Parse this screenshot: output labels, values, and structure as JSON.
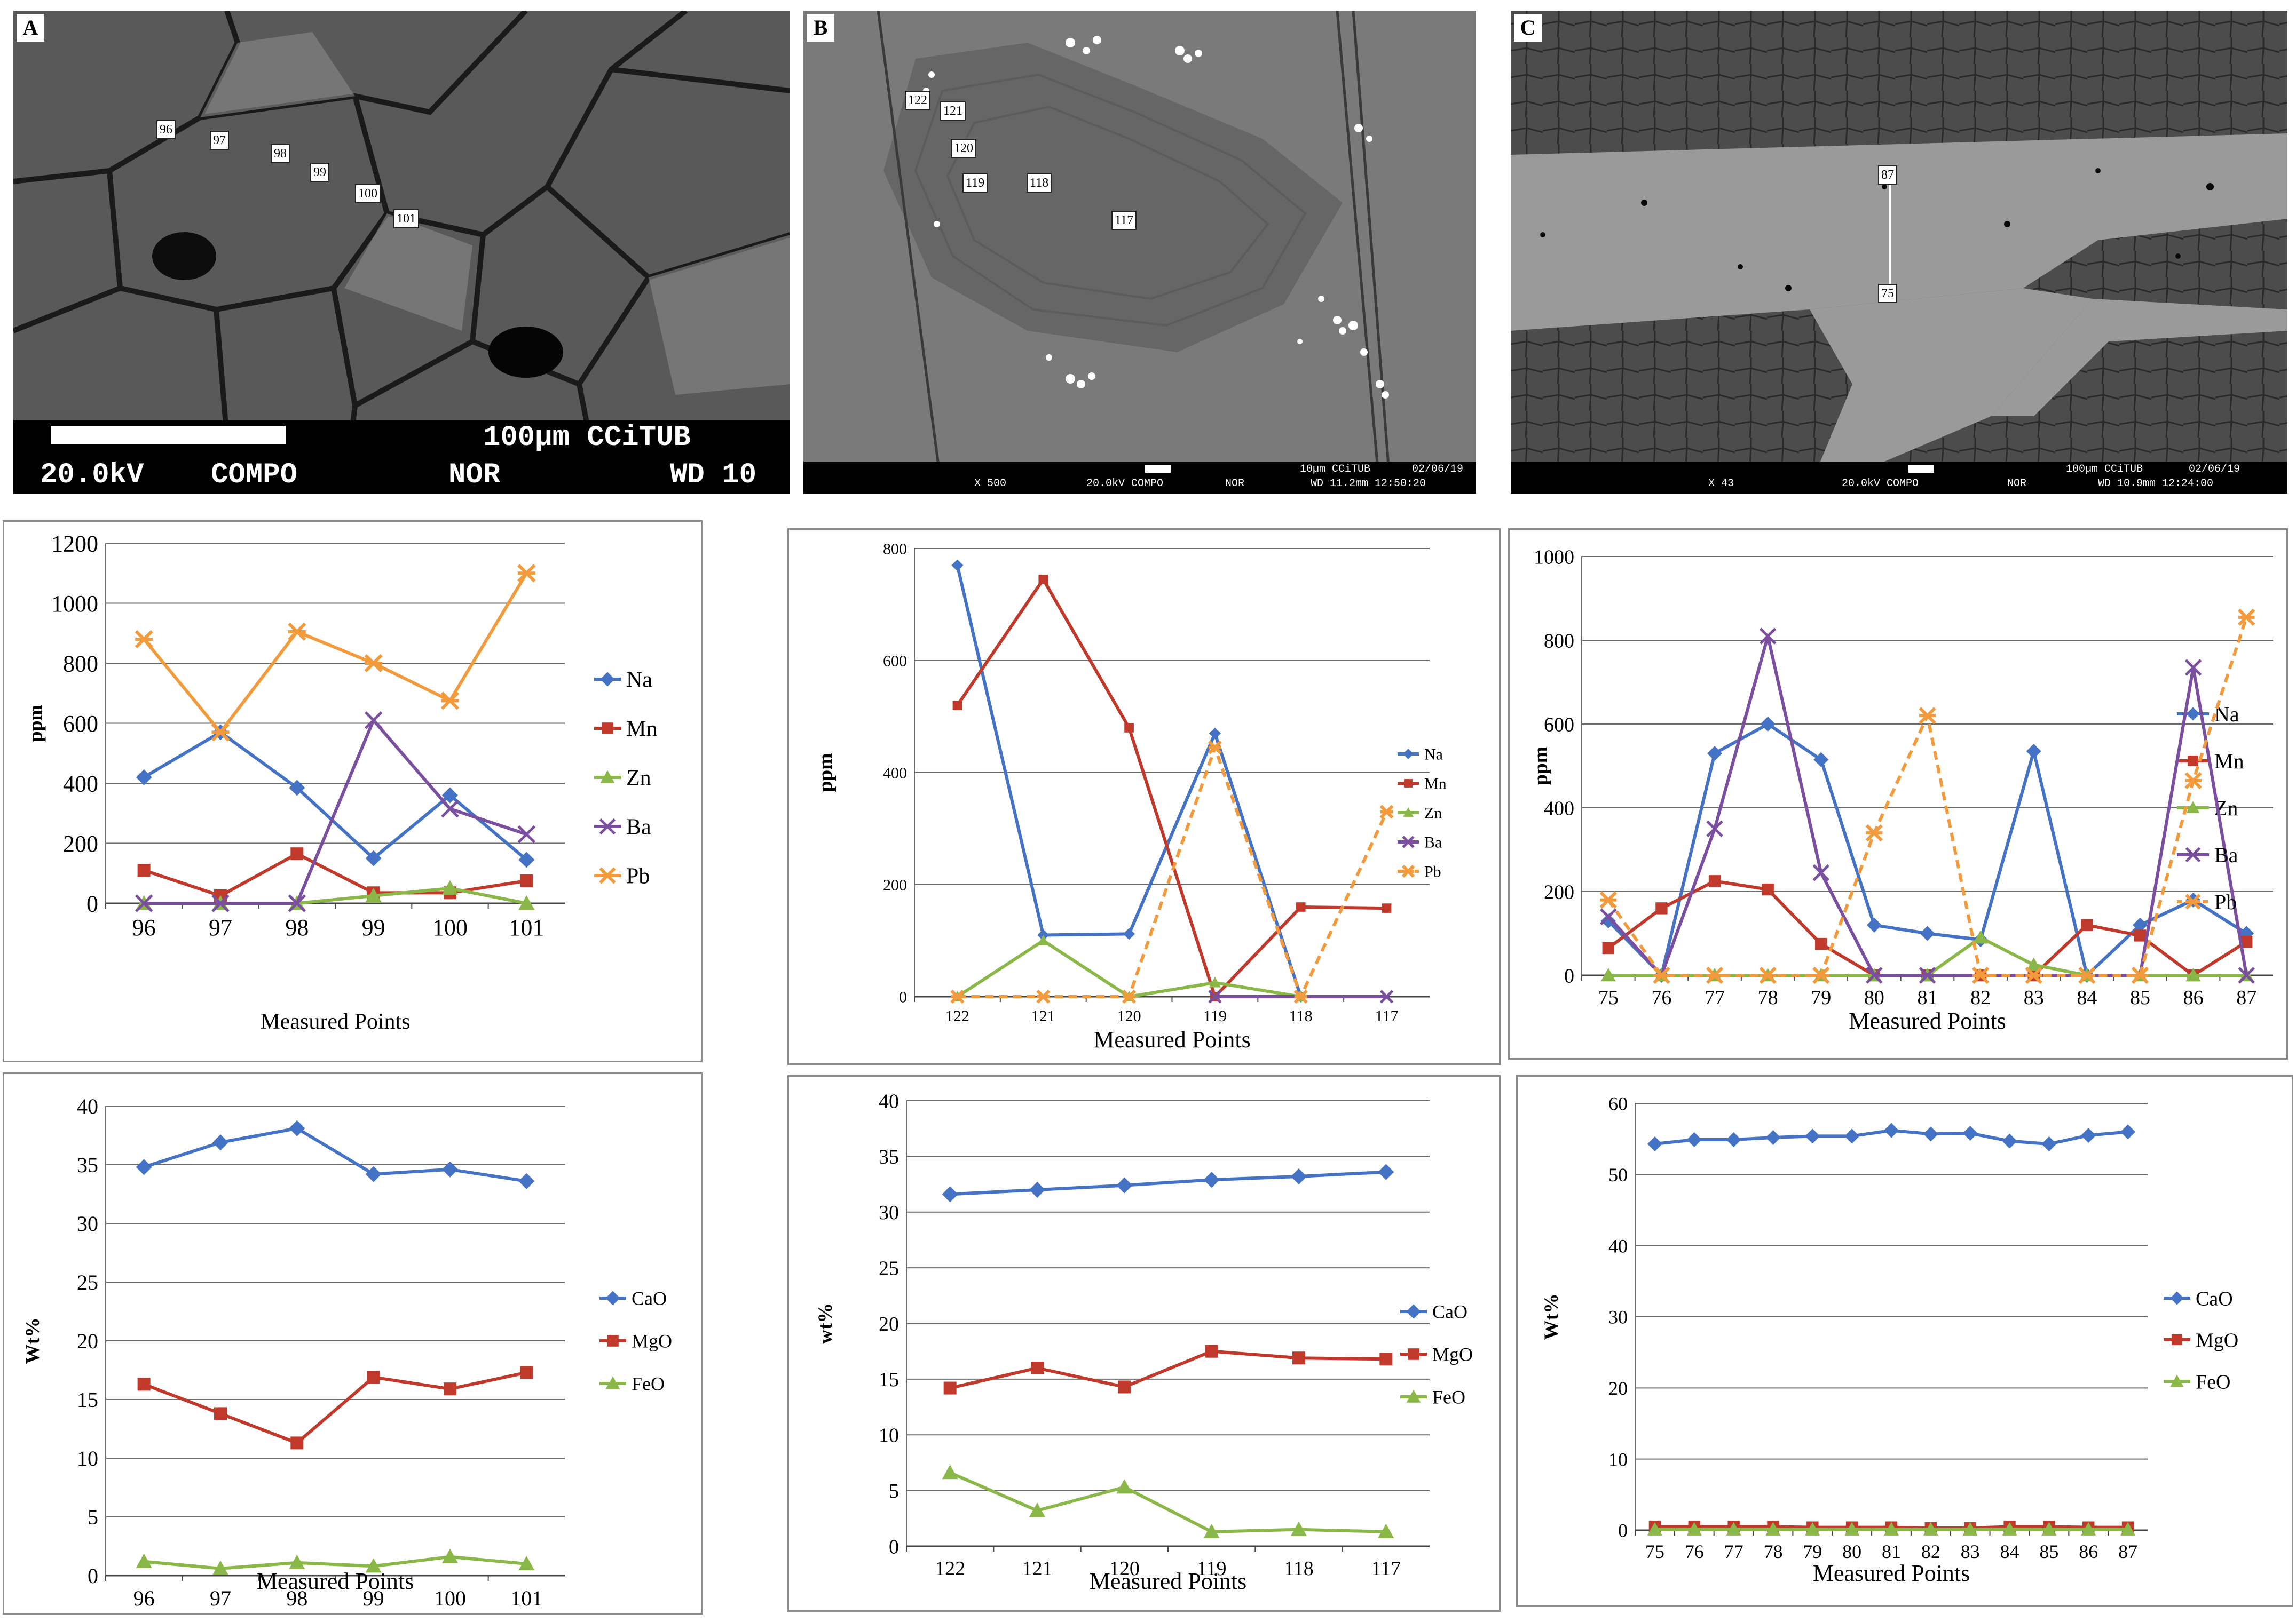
{
  "figure": {
    "panels": {
      "A": {
        "label": "A",
        "point_labels": [
          "96",
          "97",
          "98",
          "99",
          "100",
          "101"
        ],
        "scale_text": "100µm CCiTUB",
        "info": {
          "kv": "20.0kV",
          "mode": "COMPO",
          "det": "NOR",
          "wd": "WD 10"
        }
      },
      "B": {
        "label": "B",
        "point_labels": [
          "122",
          "121",
          "120",
          "119",
          "118",
          "117"
        ],
        "info": {
          "mag": "X 500",
          "kv": "20.0kV COMPO",
          "det": "NOR",
          "scale": "10µm CCiTUB",
          "date": "02/06/19",
          "wd": "WD 11.2mm 12:50:20"
        }
      },
      "C": {
        "label": "C",
        "point_labels": [
          "87",
          "75"
        ],
        "info": {
          "mag": "X 43",
          "kv": "20.0kV COMPO",
          "det": "NOR",
          "scale": "100µm CCiTUB",
          "date": "02/06/19",
          "wd": "WD 10.9mm 12:24:00"
        }
      }
    }
  },
  "colors": {
    "Na": "#4472c4",
    "Mn": "#c0392b",
    "Zn": "#8ab848",
    "Ba": "#7b4fa0",
    "Pb": "#f39a3c",
    "CaO": "#4472c4",
    "MgO": "#c0392b",
    "FeO": "#8ab848"
  },
  "chart_data": [
    {
      "id": "A-trace",
      "type": "line",
      "title": "",
      "xlabel": "Measured Points",
      "ylabel": "ppm",
      "categories": [
        "96",
        "97",
        "98",
        "99",
        "100",
        "101"
      ],
      "ylim": [
        0,
        1200
      ],
      "yticks": [
        0,
        200,
        400,
        600,
        800,
        1000,
        1200
      ],
      "series": [
        {
          "name": "Na",
          "marker": "diamond",
          "values": [
            420,
            570,
            385,
            150,
            360,
            145
          ]
        },
        {
          "name": "Mn",
          "marker": "square",
          "values": [
            110,
            25,
            165,
            35,
            35,
            75
          ]
        },
        {
          "name": "Zn",
          "marker": "triangle",
          "values": [
            0,
            0,
            0,
            25,
            50,
            0
          ]
        },
        {
          "name": "Ba",
          "marker": "x",
          "values": [
            0,
            0,
            0,
            610,
            315,
            230
          ]
        },
        {
          "name": "Pb",
          "marker": "star",
          "values": [
            880,
            570,
            905,
            800,
            675,
            1100
          ]
        }
      ]
    },
    {
      "id": "B-trace",
      "type": "line",
      "title": "",
      "xlabel": "Measured Points",
      "ylabel": "ppm",
      "categories": [
        "122",
        "121",
        "120",
        "119",
        "118",
        "117"
      ],
      "ylim": [
        0,
        800
      ],
      "yticks": [
        0,
        200,
        400,
        600,
        800
      ],
      "series": [
        {
          "name": "Na",
          "marker": "diamond",
          "values": [
            770,
            110,
            112,
            470,
            0,
            null
          ]
        },
        {
          "name": "Mn",
          "marker": "square",
          "values": [
            520,
            745,
            480,
            0,
            160,
            158
          ]
        },
        {
          "name": "Zn",
          "marker": "triangle",
          "values": [
            0,
            100,
            0,
            25,
            0,
            null
          ]
        },
        {
          "name": "Ba",
          "marker": "x",
          "values": [
            null,
            null,
            null,
            0,
            0,
            0
          ]
        },
        {
          "name": "Pb",
          "marker": "star",
          "values": [
            0,
            0,
            0,
            445,
            0,
            330
          ]
        }
      ]
    },
    {
      "id": "C-trace",
      "type": "line",
      "title": "",
      "xlabel": "Measured Points",
      "ylabel": "ppm",
      "categories": [
        "75",
        "76",
        "77",
        "78",
        "79",
        "80",
        "81",
        "82",
        "83",
        "84",
        "85",
        "86",
        "87"
      ],
      "ylim": [
        0,
        1000
      ],
      "yticks": [
        0,
        200,
        400,
        600,
        800,
        1000
      ],
      "series": [
        {
          "name": "Na",
          "marker": "diamond",
          "values": [
            130,
            0,
            530,
            600,
            515,
            120,
            100,
            85,
            535,
            0,
            120,
            180,
            100
          ]
        },
        {
          "name": "Mn",
          "marker": "square",
          "values": [
            65,
            160,
            225,
            205,
            75,
            0,
            0,
            0,
            0,
            120,
            95,
            0,
            80
          ]
        },
        {
          "name": "Zn",
          "marker": "triangle",
          "values": [
            0,
            0,
            0,
            0,
            0,
            0,
            0,
            90,
            25,
            0,
            0,
            0,
            0
          ]
        },
        {
          "name": "Ba",
          "marker": "x",
          "values": [
            140,
            0,
            350,
            810,
            245,
            0,
            0,
            0,
            0,
            0,
            0,
            735,
            0
          ]
        },
        {
          "name": "Pb",
          "marker": "star",
          "values": [
            180,
            0,
            0,
            0,
            0,
            340,
            620,
            0,
            0,
            0,
            0,
            465,
            855
          ]
        }
      ]
    },
    {
      "id": "A-major",
      "type": "line",
      "title": "",
      "xlabel": "Measured Points",
      "ylabel": "Wt%",
      "categories": [
        "96",
        "97",
        "98",
        "99",
        "100",
        "101"
      ],
      "ylim": [
        0,
        40
      ],
      "yticks": [
        0,
        5,
        10,
        15,
        20,
        25,
        30,
        35,
        40
      ],
      "series": [
        {
          "name": "CaO",
          "marker": "diamond",
          "values": [
            34.8,
            36.9,
            38.1,
            34.2,
            34.6,
            33.6
          ]
        },
        {
          "name": "MgO",
          "marker": "square",
          "values": [
            16.3,
            13.8,
            11.3,
            16.9,
            15.9,
            17.3
          ]
        },
        {
          "name": "FeO",
          "marker": "triangle",
          "values": [
            1.2,
            0.6,
            1.1,
            0.8,
            1.6,
            1.0
          ]
        }
      ]
    },
    {
      "id": "B-major",
      "type": "line",
      "title": "",
      "xlabel": "Measured Points",
      "ylabel": "wt%",
      "categories": [
        "122",
        "121",
        "120",
        "119",
        "118",
        "117"
      ],
      "ylim": [
        0,
        40
      ],
      "yticks": [
        0,
        5,
        10,
        15,
        20,
        25,
        30,
        35,
        40
      ],
      "series": [
        {
          "name": "CaO",
          "marker": "diamond",
          "values": [
            31.6,
            32.0,
            32.4,
            32.9,
            33.2,
            33.6
          ]
        },
        {
          "name": "MgO",
          "marker": "square",
          "values": [
            14.2,
            16.0,
            14.3,
            17.5,
            16.9,
            16.8
          ]
        },
        {
          "name": "FeO",
          "marker": "triangle",
          "values": [
            6.6,
            3.2,
            5.3,
            1.3,
            1.5,
            1.3
          ]
        }
      ]
    },
    {
      "id": "C-major",
      "type": "line",
      "title": "",
      "xlabel": "Measured Points",
      "ylabel": "Wt%",
      "categories": [
        "75",
        "76",
        "77",
        "78",
        "79",
        "80",
        "81",
        "82",
        "83",
        "84",
        "85",
        "86",
        "87"
      ],
      "ylim": [
        0,
        60
      ],
      "yticks": [
        0,
        10,
        20,
        30,
        40,
        50,
        60
      ],
      "series": [
        {
          "name": "CaO",
          "marker": "diamond",
          "values": [
            54.3,
            54.9,
            54.9,
            55.2,
            55.4,
            55.4,
            56.2,
            55.7,
            55.8,
            54.7,
            54.3,
            55.5,
            56.0
          ]
        },
        {
          "name": "MgO",
          "marker": "square",
          "values": [
            0.5,
            0.5,
            0.5,
            0.5,
            0.4,
            0.4,
            0.4,
            0.3,
            0.3,
            0.5,
            0.5,
            0.4,
            0.4
          ]
        },
        {
          "name": "FeO",
          "marker": "triangle",
          "values": [
            0.1,
            0.1,
            0.1,
            0.1,
            0.1,
            0.1,
            0.1,
            0.1,
            0.1,
            0.1,
            0.1,
            0.1,
            0.1
          ]
        }
      ]
    }
  ]
}
